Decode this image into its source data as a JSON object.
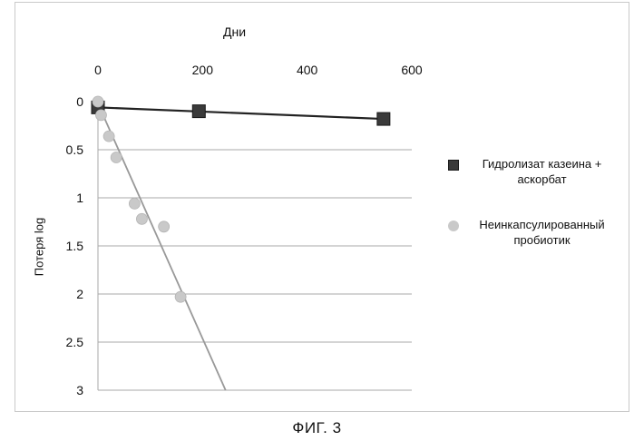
{
  "chart_data": {
    "type": "scatter",
    "xlabel": "Дни",
    "ylabel": "Потеря log",
    "x_ticks": [
      0,
      200,
      400,
      600
    ],
    "y_ticks": [
      0,
      0.5,
      1,
      1.5,
      2,
      2.5,
      3
    ],
    "x_tick_labels": [
      "0",
      "200",
      "400",
      "600"
    ],
    "y_tick_labels": [
      "0",
      "0.5",
      "1",
      "1.5",
      "2",
      "2.5",
      "3"
    ],
    "xlim": [
      0,
      600
    ],
    "ylim": [
      0,
      3
    ],
    "y_inverted": true,
    "x_axis_position": "top",
    "grid": "horizontal",
    "legend_position": "right",
    "series": [
      {
        "name": "Гидролизат казеина + аскорбат",
        "marker": "square",
        "color": "#3a3a3a",
        "points": [
          [
            0,
            0.06
          ],
          [
            193,
            0.1
          ],
          [
            546,
            0.18
          ]
        ],
        "trendline": [
          [
            0,
            0.06
          ],
          [
            546,
            0.18
          ]
        ]
      },
      {
        "name": "Неинкапсулированный пробиотик",
        "marker": "circle",
        "color": "#c9c9c9",
        "points": [
          [
            0,
            0.0
          ],
          [
            6,
            0.14
          ],
          [
            21,
            0.36
          ],
          [
            35,
            0.58
          ],
          [
            70,
            1.06
          ],
          [
            84,
            1.22
          ],
          [
            126,
            1.3
          ],
          [
            158,
            2.03
          ]
        ],
        "trendline": [
          [
            0,
            0.02
          ],
          [
            244,
            3.0
          ]
        ]
      }
    ]
  },
  "figure_caption": "ФИГ. 3"
}
